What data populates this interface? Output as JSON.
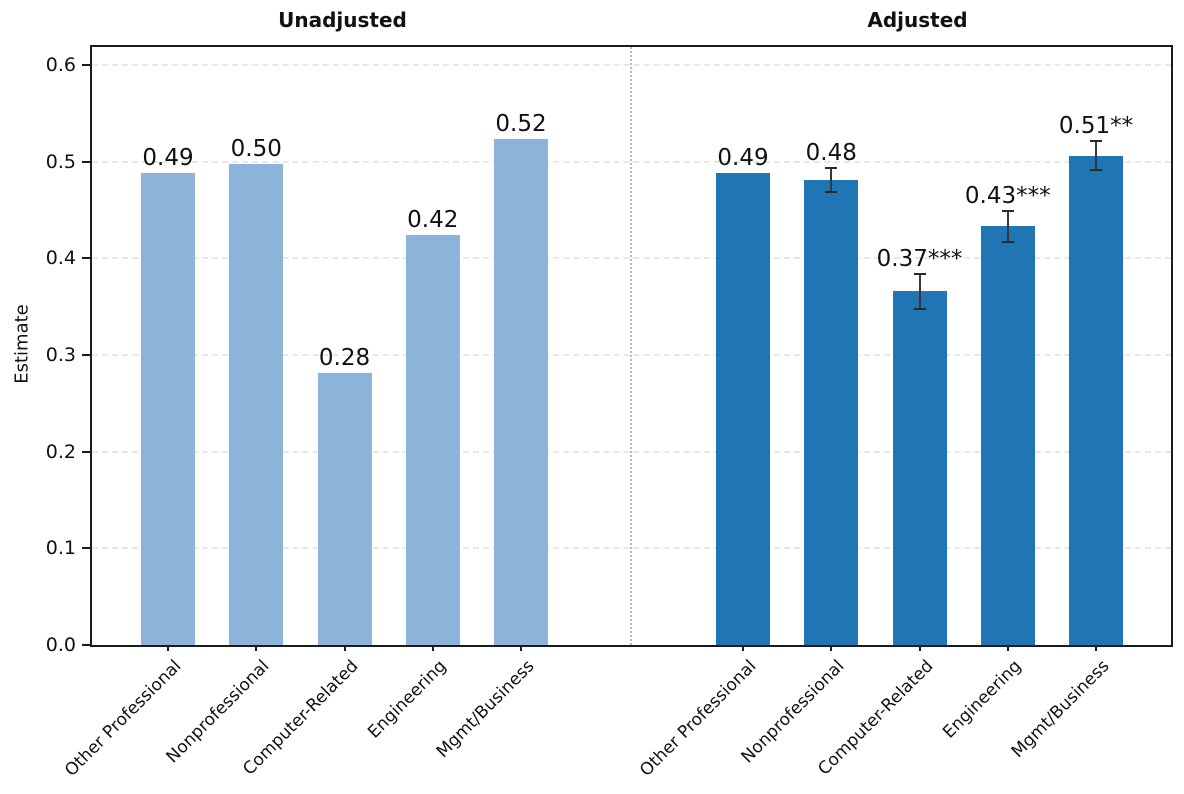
{
  "figure": {
    "background": "#ffffff",
    "spine_color": "#1c1c1c",
    "grid_color": "#e8e8e8",
    "separator_color": "#b9b9b9",
    "errorbar_color": "#383838"
  },
  "chart_data": {
    "type": "bar",
    "ylabel": "Estimate",
    "ylim": [
      0,
      0.619
    ],
    "grid": "horizontal-dashed",
    "separator": "dotted-vertical-between-panels",
    "legend": "none",
    "ytick_values": [
      0.0,
      0.1,
      0.2,
      0.3,
      0.4,
      0.5,
      0.6
    ],
    "ytick_labels": [
      "0.0",
      "0.1",
      "0.2",
      "0.3",
      "0.4",
      "0.5",
      "0.6"
    ],
    "categories": [
      "Other Professional",
      "Nonprofessional",
      "Computer-Related",
      "Engineering",
      "Mgmt/Business"
    ],
    "panels": [
      {
        "title": "Unadjusted",
        "bar_color": "#8cb3d9",
        "values": [
          0.488,
          0.498,
          0.281,
          0.424,
          0.523
        ],
        "labels": [
          "0.49",
          "0.50",
          "0.28",
          "0.42",
          "0.52"
        ],
        "errors": [
          null,
          null,
          null,
          null,
          null
        ]
      },
      {
        "title": "Adjusted",
        "bar_color": "#2076b4",
        "values": [
          0.488,
          0.481,
          0.366,
          0.433,
          0.506
        ],
        "labels": [
          "0.49",
          "0.48",
          "0.37***",
          "0.43***",
          "0.51**"
        ],
        "errors": [
          null,
          0.012,
          0.018,
          0.016,
          0.015
        ]
      }
    ]
  }
}
